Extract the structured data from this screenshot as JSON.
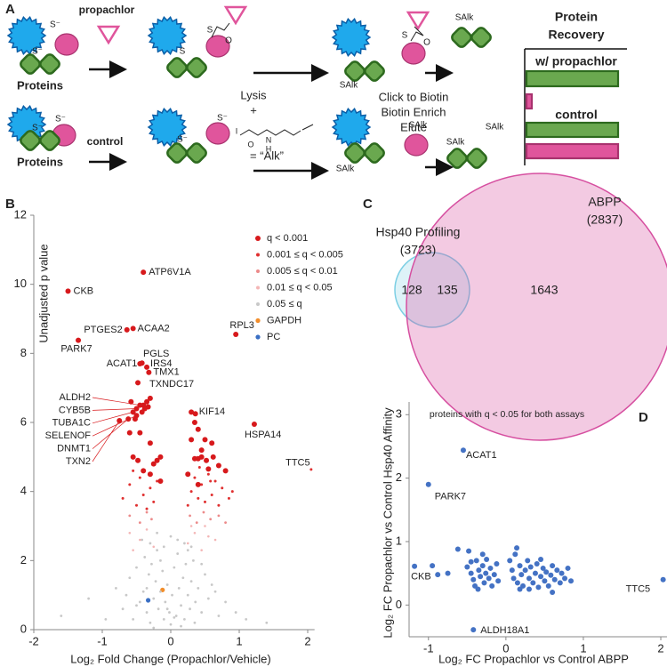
{
  "schematic": {
    "panel": "A",
    "texts": [
      "propachlor",
      "Proteins",
      "control",
      "Proteins",
      "Lysis",
      "+",
      "= “Alk”",
      "Click to Biotin",
      "Biotin Enrich",
      "Elute",
      "Protein",
      "Recovery",
      "w/ propachlor",
      "control",
      "S⁻",
      "S⁻",
      "S",
      "S",
      "O",
      "SAlk",
      "S",
      "O",
      "SAlk",
      "S⁻",
      "S⁻",
      "S⁻",
      "S⁻",
      "SAlk",
      "SAlk",
      "SAlk",
      "SAlk",
      "I",
      "O",
      "N",
      "H"
    ]
  },
  "chart_data": [
    {
      "type": "scatter",
      "panel": "B",
      "x_label": "Log₂ Fold Change (Propachlor/Vehicle)",
      "y_label": "Unadjusted p value",
      "xlim": [
        -2,
        2.1
      ],
      "ylim": [
        0,
        12
      ],
      "xticks": [
        -2,
        -1,
        0,
        1,
        2
      ],
      "yticks": [
        0,
        2,
        4,
        6,
        8,
        10,
        12
      ],
      "legend": "upper right",
      "series": [
        {
          "name": "q < 0.001",
          "color": "#d7191c",
          "x": [
            -1.5,
            -0.4,
            -0.64,
            -0.55,
            0.95,
            -1.35,
            -0.42,
            -0.45,
            -0.35,
            -0.32,
            -0.48,
            0.36,
            1.22,
            -0.45,
            -0.5,
            -0.55,
            -0.5,
            -0.62,
            -0.75,
            -0.4,
            -0.35,
            -0.38,
            -0.42,
            -0.3,
            -0.33,
            -0.58,
            -0.52,
            -0.6,
            -0.3,
            -0.45,
            -0.55,
            -0.48,
            -0.4,
            -0.3,
            -0.2,
            -0.15,
            -0.25,
            0.3,
            0.35,
            0.4,
            0.3,
            0.45,
            0.5,
            0.6,
            0.35,
            0.4,
            0.45,
            0.52,
            0.62,
            0.7,
            0.8,
            0.25,
            0.4,
            -0.15,
            0.55
          ],
          "values": [
            9.8,
            10.35,
            8.68,
            8.72,
            8.55,
            8.38,
            7.72,
            7.7,
            7.6,
            7.45,
            7.15,
            6.25,
            5.95,
            6.5,
            6.4,
            6.3,
            6.2,
            6.1,
            6.05,
            6.5,
            6.6,
            6.4,
            6.3,
            6.7,
            6.45,
            6.6,
            6.1,
            5.7,
            5.4,
            5.7,
            5.0,
            4.9,
            4.6,
            4.5,
            4.9,
            4.3,
            4.8,
            6.3,
            6.0,
            5.8,
            5.5,
            5.2,
            5.5,
            5.4,
            4.95,
            4.95,
            5.0,
            4.9,
            5.0,
            4.75,
            4.6,
            4.5,
            4.2,
            5.0,
            4.65
          ],
          "labels": [
            "CKB",
            "ATP6V1A",
            "PTGES2",
            "ACAA2",
            "RPL3",
            "PARK7",
            "PGLS",
            "ACAT1",
            "IRS4",
            "TMX1",
            "TXNDC17",
            "KIF14",
            "HSPA14",
            "ALDH2",
            "CYB5B",
            "TUBA1C",
            "SELENOF",
            "DNMT1",
            "TXN2",
            null,
            null,
            null,
            null,
            null,
            null,
            null,
            null,
            null,
            null,
            null,
            null,
            null,
            null,
            null,
            null,
            null,
            null,
            null,
            null,
            null,
            null,
            null,
            null,
            null,
            null,
            null,
            null,
            null,
            null,
            null,
            null,
            null,
            null,
            null,
            null
          ]
        },
        {
          "name": "0.001 ≤ q < 0.005",
          "color": "#e03030",
          "x": [
            2.05,
            -0.7,
            -0.6,
            -0.5,
            -0.45,
            -0.4,
            -0.3,
            -0.25,
            -0.2,
            0.25,
            0.3,
            0.35,
            0.4,
            0.45,
            0.5,
            0.55,
            0.6,
            0.65,
            0.7,
            0.75,
            0.85,
            0.9,
            -0.55,
            0.42,
            0.58,
            -0.35
          ],
          "values": [
            4.64,
            3.8,
            4.2,
            3.6,
            4.4,
            3.9,
            4.1,
            3.7,
            4.3,
            3.6,
            4.0,
            4.4,
            3.8,
            4.2,
            3.7,
            4.5,
            3.9,
            4.3,
            3.6,
            4.1,
            3.8,
            4.0,
            4.6,
            4.7,
            4.3,
            3.5
          ],
          "labels": [
            "TTC5",
            null,
            null,
            null,
            null,
            null,
            null,
            null,
            null,
            null,
            null,
            null,
            null,
            null,
            null,
            null,
            null,
            null,
            null,
            null,
            null,
            null,
            null,
            null,
            null,
            null
          ]
        },
        {
          "name": "0.005 ≤ q < 0.01",
          "color": "#ec8a8a",
          "x": [
            -0.6,
            -0.45,
            -0.35,
            -0.28,
            0.28,
            0.38,
            0.48,
            0.58,
            0.7,
            0.8
          ],
          "values": [
            3.3,
            3.1,
            3.4,
            3.2,
            3.3,
            3.1,
            3.4,
            3.2,
            3.3,
            3.1
          ]
        },
        {
          "name": "0.01 ≤ q < 0.05",
          "color": "#f4b6b6",
          "x": [
            -0.55,
            -0.45,
            -0.35,
            -0.25,
            0.25,
            0.35,
            0.45,
            0.55,
            0.65,
            -0.6,
            0.3,
            0.5
          ],
          "values": [
            2.3,
            2.6,
            2.9,
            2.4,
            2.5,
            2.8,
            2.3,
            2.7,
            2.6,
            2.8,
            3.0,
            3.0
          ]
        },
        {
          "name": "0.05 ≤ q",
          "color": "#c8c8c8",
          "x": [
            -1.6,
            -1.2,
            -0.95,
            -0.8,
            -0.7,
            -0.6,
            -0.55,
            -0.5,
            -0.45,
            -0.4,
            -0.38,
            -0.35,
            -0.32,
            -0.3,
            -0.28,
            -0.25,
            -0.22,
            -0.2,
            -0.18,
            -0.15,
            -0.12,
            -0.1,
            -0.08,
            -0.05,
            -0.02,
            0,
            0.02,
            0.05,
            0.08,
            0.1,
            0.12,
            0.15,
            0.18,
            0.2,
            0.22,
            0.25,
            0.28,
            0.3,
            0.33,
            0.36,
            0.4,
            0.45,
            0.5,
            0.55,
            0.6,
            0.7,
            0.8,
            0.95,
            1.1,
            1.4,
            -0.42,
            -0.3,
            -0.2,
            -0.1,
            0,
            0.1,
            0.2,
            0.3,
            -0.65,
            0.65,
            -0.25,
            0.15,
            0.35,
            -0.05,
            0.05,
            -0.15,
            0.25,
            -0.35,
            0.45,
            -0.5
          ],
          "values": [
            0.4,
            0.9,
            0.3,
            1.2,
            0.6,
            1.5,
            0.3,
            1.8,
            0.8,
            1.1,
            2.1,
            0.5,
            1.6,
            0.2,
            1.9,
            0.9,
            1.4,
            2.3,
            0.6,
            1.1,
            1.7,
            0.3,
            0.8,
            1.3,
            0.5,
            0.15,
            1.0,
            1.8,
            0.4,
            2.2,
            1.2,
            0.7,
            1.5,
            0.3,
            1.9,
            1.0,
            0.6,
            1.4,
            2.0,
            0.8,
            1.2,
            0.5,
            1.6,
            0.9,
            1.3,
            0.4,
            0.8,
            0.5,
            0.3,
            0.2,
            2.6,
            2.5,
            2.8,
            2.4,
            2.7,
            2.6,
            2.5,
            2.4,
            1.0,
            1.1,
            0.05,
            0.1,
            0.2,
            0.6,
            0.35,
            2.0,
            2.3,
            1.2,
            1.9,
            0.7
          ]
        },
        {
          "name": "GAPDH",
          "color": "#f28e2b",
          "x": [
            -0.12
          ],
          "values": [
            1.15
          ]
        },
        {
          "name": "PC",
          "color": "#3a6fc4",
          "x": [
            -0.33
          ],
          "values": [
            0.85
          ]
        }
      ]
    },
    {
      "type": "venn",
      "panel": "C",
      "sets": [
        {
          "name": "ABPP",
          "label": "(2837)",
          "color": "#d64fa0"
        },
        {
          "name": "Hsp40 Profiling",
          "label": "(3723)",
          "color": "#7ccfe4"
        }
      ],
      "values": [
        128,
        135,
        1643
      ]
    },
    {
      "type": "scatter",
      "panel": "D",
      "subtitle": "proteins with q < 0.05 for both assays",
      "x_label": "Log₂ FC Propachlor vs Control ABPP",
      "y_label": "Log₂ FC Propachlor vs Control Hsp40 Affinity",
      "xlim": [
        -1.25,
        2.08
      ],
      "ylim": [
        -0.5,
        3.2
      ],
      "xticks": [
        -1,
        0,
        1,
        2
      ],
      "yticks": [
        0,
        1,
        2,
        3
      ],
      "series": [
        {
          "color": "#4472c4",
          "x": [
            -1.18,
            -1.0,
            -0.55,
            -0.42,
            2.03,
            -0.95,
            -0.88,
            -0.75,
            -0.62,
            -0.48,
            -0.5,
            -0.45,
            -0.42,
            -0.4,
            -0.38,
            -0.35,
            -0.33,
            -0.3,
            -0.28,
            -0.26,
            -0.25,
            -0.22,
            -0.2,
            -0.18,
            -0.15,
            -0.12,
            -0.1,
            -0.36,
            -0.3,
            -0.45,
            0.08,
            0.1,
            0.12,
            0.15,
            0.18,
            0.2,
            0.22,
            0.25,
            0.28,
            0.3,
            0.32,
            0.35,
            0.38,
            0.4,
            0.42,
            0.45,
            0.48,
            0.5,
            0.52,
            0.55,
            0.58,
            0.6,
            0.63,
            0.66,
            0.7,
            0.72,
            0.76,
            0.8,
            0.84,
            0.18,
            0.3,
            0.6,
            0.05,
            0.14,
            0.45
          ],
          "values": [
            0.61,
            1.9,
            2.44,
            -0.39,
            0.4,
            0.62,
            0.48,
            0.5,
            0.88,
            0.85,
            0.6,
            0.5,
            0.4,
            0.3,
            0.7,
            0.55,
            0.45,
            0.62,
            0.35,
            0.5,
            0.72,
            0.42,
            0.58,
            0.3,
            0.48,
            0.65,
            0.38,
            0.25,
            0.8,
            0.68,
            0.55,
            0.42,
            0.8,
            0.35,
            0.62,
            0.48,
            0.3,
            0.55,
            0.7,
            0.42,
            0.6,
            0.35,
            0.5,
            0.65,
            0.28,
            0.45,
            0.58,
            0.38,
            0.52,
            0.3,
            0.47,
            0.62,
            0.4,
            0.55,
            0.35,
            0.5,
            0.42,
            0.58,
            0.38,
            0.25,
            0.25,
            0.2,
            0.7,
            0.9,
            0.72
          ],
          "labels": [
            "CKB",
            "PARK7",
            "ACAT1",
            "ALDH18A1",
            "TTC5",
            null,
            null,
            null,
            null,
            null,
            null,
            null,
            null,
            null,
            null,
            null,
            null,
            null,
            null,
            null,
            null,
            null,
            null,
            null,
            null,
            null,
            null,
            null,
            null,
            null,
            null,
            null,
            null,
            null,
            null,
            null,
            null,
            null,
            null,
            null,
            null,
            null,
            null,
            null,
            null,
            null,
            null,
            null,
            null,
            null,
            null,
            null,
            null,
            null,
            null,
            null,
            null,
            null,
            null,
            null,
            null,
            null,
            null,
            null,
            null
          ]
        }
      ]
    }
  ]
}
